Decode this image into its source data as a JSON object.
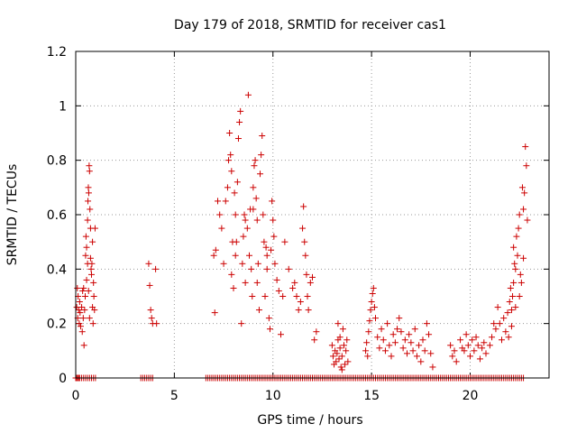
{
  "chart_data": {
    "type": "scatter",
    "title": "Day 179 of 2018, SRMTID for receiver cas1",
    "xlabel": "GPS time / hours",
    "ylabel": "SRMTID / TECUs",
    "xlim": [
      0,
      24
    ],
    "ylim": [
      0,
      1.2
    ],
    "xticks": [
      0,
      5,
      10,
      15,
      20
    ],
    "yticks": [
      0,
      0.2,
      0.4,
      0.6,
      0.8,
      1,
      1.2
    ],
    "xtick_labels": [
      "0",
      "5",
      "10",
      "15",
      "20"
    ],
    "ytick_labels": [
      "0",
      "0.2",
      "0.4",
      "0.6",
      "0.8",
      "1",
      "1.2"
    ],
    "grid": true,
    "marker": "+",
    "color": "#cc0000",
    "series": [
      {
        "name": "SRMTID",
        "points": [
          [
            0.05,
            0.26
          ],
          [
            0.08,
            0.33
          ],
          [
            0.1,
            0.22
          ],
          [
            0.12,
            0.3
          ],
          [
            0.15,
            0.25
          ],
          [
            0.18,
            0.2
          ],
          [
            0.2,
            0.28
          ],
          [
            0.22,
            0.24
          ],
          [
            0.25,
            0.19
          ],
          [
            0.3,
            0.26
          ],
          [
            0.33,
            0.17
          ],
          [
            0.35,
            0.32
          ],
          [
            0.38,
            0.22
          ],
          [
            0.4,
            0.33
          ],
          [
            0.42,
            0.12
          ],
          [
            0.45,
            0.25
          ],
          [
            0.48,
            0.3
          ],
          [
            0.5,
            0.45
          ],
          [
            0.52,
            0.52
          ],
          [
            0.55,
            0.48
          ],
          [
            0.6,
            0.58
          ],
          [
            0.62,
            0.65
          ],
          [
            0.64,
            0.7
          ],
          [
            0.66,
            0.68
          ],
          [
            0.68,
            0.78
          ],
          [
            0.7,
            0.76
          ],
          [
            0.72,
            0.62
          ],
          [
            0.75,
            0.55
          ],
          [
            0.78,
            0.4
          ],
          [
            0.8,
            0.38
          ],
          [
            0.82,
            0.42
          ],
          [
            0.85,
            0.5
          ],
          [
            0.9,
            0.35
          ],
          [
            0.92,
            0.3
          ],
          [
            0.95,
            0.25
          ],
          [
            0.98,
            0.55
          ],
          [
            0.55,
            0.36
          ],
          [
            0.6,
            0.42
          ],
          [
            0.65,
            0.32
          ],
          [
            0.7,
            0.22
          ],
          [
            0.75,
            0.44
          ],
          [
            0.85,
            0.26
          ],
          [
            0.88,
            0.2
          ],
          [
            3.7,
            0.42
          ],
          [
            3.75,
            0.34
          ],
          [
            3.8,
            0.25
          ],
          [
            3.85,
            0.22
          ],
          [
            3.9,
            0.2
          ],
          [
            4.05,
            0.4
          ],
          [
            4.1,
            0.2
          ],
          [
            7.0,
            0.45
          ],
          [
            7.05,
            0.24
          ],
          [
            7.1,
            0.47
          ],
          [
            7.2,
            0.65
          ],
          [
            7.3,
            0.6
          ],
          [
            7.4,
            0.55
          ],
          [
            7.5,
            0.42
          ],
          [
            7.6,
            0.65
          ],
          [
            7.7,
            0.7
          ],
          [
            7.75,
            0.8
          ],
          [
            7.8,
            0.9
          ],
          [
            7.85,
            0.82
          ],
          [
            7.9,
            0.76
          ],
          [
            7.95,
            0.5
          ],
          [
            8.0,
            0.33
          ],
          [
            8.05,
            0.68
          ],
          [
            8.1,
            0.6
          ],
          [
            8.2,
            0.72
          ],
          [
            8.25,
            0.88
          ],
          [
            8.3,
            0.94
          ],
          [
            8.35,
            0.98
          ],
          [
            8.4,
            0.2
          ],
          [
            8.45,
            0.42
          ],
          [
            8.5,
            0.52
          ],
          [
            8.55,
            0.6
          ],
          [
            8.6,
            0.35
          ],
          [
            8.7,
            0.55
          ],
          [
            8.75,
            1.04
          ],
          [
            8.8,
            0.45
          ],
          [
            8.85,
            0.62
          ],
          [
            8.9,
            0.4
          ],
          [
            8.95,
            0.3
          ],
          [
            9.0,
            0.7
          ],
          [
            9.05,
            0.78
          ],
          [
            9.1,
            0.8
          ],
          [
            9.15,
            0.66
          ],
          [
            9.2,
            0.58
          ],
          [
            9.25,
            0.42
          ],
          [
            9.3,
            0.25
          ],
          [
            9.35,
            0.75
          ],
          [
            9.4,
            0.82
          ],
          [
            9.45,
            0.89
          ],
          [
            9.5,
            0.6
          ],
          [
            9.55,
            0.5
          ],
          [
            9.6,
            0.3
          ],
          [
            9.65,
            0.48
          ],
          [
            9.7,
            0.4
          ],
          [
            9.8,
            0.22
          ],
          [
            9.85,
            0.18
          ],
          [
            9.9,
            0.47
          ],
          [
            9.95,
            0.65
          ],
          [
            10.0,
            0.58
          ],
          [
            10.05,
            0.52
          ],
          [
            10.1,
            0.42
          ],
          [
            10.2,
            0.36
          ],
          [
            10.3,
            0.32
          ],
          [
            10.4,
            0.16
          ],
          [
            10.5,
            0.3
          ],
          [
            10.6,
            0.5
          ],
          [
            10.8,
            0.4
          ],
          [
            11.0,
            0.33
          ],
          [
            11.1,
            0.35
          ],
          [
            11.2,
            0.3
          ],
          [
            11.3,
            0.25
          ],
          [
            11.4,
            0.28
          ],
          [
            11.5,
            0.55
          ],
          [
            11.55,
            0.63
          ],
          [
            11.6,
            0.5
          ],
          [
            11.65,
            0.45
          ],
          [
            11.7,
            0.38
          ],
          [
            11.75,
            0.3
          ],
          [
            11.8,
            0.25
          ],
          [
            11.9,
            0.35
          ],
          [
            12.0,
            0.37
          ],
          [
            12.1,
            0.14
          ],
          [
            12.2,
            0.17
          ],
          [
            7.9,
            0.38
          ],
          [
            8.1,
            0.45
          ],
          [
            8.15,
            0.5
          ],
          [
            8.6,
            0.58
          ],
          [
            9.0,
            0.62
          ],
          [
            9.2,
            0.35
          ],
          [
            9.7,
            0.45
          ],
          [
            13.0,
            0.12
          ],
          [
            13.05,
            0.08
          ],
          [
            13.1,
            0.05
          ],
          [
            13.15,
            0.1
          ],
          [
            13.2,
            0.06
          ],
          [
            13.25,
            0.09
          ],
          [
            13.3,
            0.14
          ],
          [
            13.35,
            0.07
          ],
          [
            13.4,
            0.11
          ],
          [
            13.45,
            0.04
          ],
          [
            13.5,
            0.08
          ],
          [
            13.55,
            0.18
          ],
          [
            13.6,
            0.12
          ],
          [
            13.65,
            0.05
          ],
          [
            13.7,
            0.1
          ],
          [
            13.75,
            0.14
          ],
          [
            13.8,
            0.06
          ],
          [
            13.3,
            0.2
          ],
          [
            13.4,
            0.15
          ],
          [
            13.5,
            0.03
          ],
          [
            14.7,
            0.1
          ],
          [
            14.75,
            0.13
          ],
          [
            14.8,
            0.08
          ],
          [
            14.85,
            0.17
          ],
          [
            14.9,
            0.21
          ],
          [
            14.95,
            0.25
          ],
          [
            15.0,
            0.28
          ],
          [
            15.05,
            0.31
          ],
          [
            15.1,
            0.33
          ],
          [
            15.15,
            0.26
          ],
          [
            15.2,
            0.22
          ],
          [
            15.3,
            0.15
          ],
          [
            15.4,
            0.11
          ],
          [
            15.5,
            0.18
          ],
          [
            15.6,
            0.14
          ],
          [
            15.7,
            0.1
          ],
          [
            15.8,
            0.2
          ],
          [
            15.9,
            0.12
          ],
          [
            16.0,
            0.08
          ],
          [
            16.1,
            0.16
          ],
          [
            16.2,
            0.13
          ],
          [
            16.3,
            0.18
          ],
          [
            16.4,
            0.22
          ],
          [
            16.5,
            0.17
          ],
          [
            16.6,
            0.11
          ],
          [
            16.7,
            0.14
          ],
          [
            16.8,
            0.09
          ],
          [
            16.9,
            0.16
          ],
          [
            17.0,
            0.13
          ],
          [
            17.1,
            0.1
          ],
          [
            17.2,
            0.18
          ],
          [
            17.3,
            0.08
          ],
          [
            17.4,
            0.12
          ],
          [
            17.5,
            0.06
          ],
          [
            17.6,
            0.14
          ],
          [
            17.7,
            0.1
          ],
          [
            17.8,
            0.2
          ],
          [
            17.9,
            0.16
          ],
          [
            18.0,
            0.09
          ],
          [
            18.1,
            0.04
          ],
          [
            19.0,
            0.12
          ],
          [
            19.1,
            0.08
          ],
          [
            19.2,
            0.1
          ],
          [
            19.3,
            0.06
          ],
          [
            19.5,
            0.14
          ],
          [
            19.6,
            0.11
          ],
          [
            19.7,
            0.1
          ],
          [
            19.8,
            0.16
          ],
          [
            19.9,
            0.12
          ],
          [
            20.0,
            0.08
          ],
          [
            20.1,
            0.14
          ],
          [
            20.2,
            0.1
          ],
          [
            20.3,
            0.15
          ],
          [
            20.4,
            0.12
          ],
          [
            20.5,
            0.07
          ],
          [
            20.6,
            0.11
          ],
          [
            20.7,
            0.13
          ],
          [
            20.8,
            0.09
          ],
          [
            21.0,
            0.12
          ],
          [
            21.1,
            0.15
          ],
          [
            21.2,
            0.2
          ],
          [
            21.3,
            0.18
          ],
          [
            21.4,
            0.26
          ],
          [
            21.5,
            0.2
          ],
          [
            21.6,
            0.14
          ],
          [
            21.7,
            0.22
          ],
          [
            21.8,
            0.17
          ],
          [
            21.9,
            0.24
          ],
          [
            22.0,
            0.28
          ],
          [
            22.05,
            0.33
          ],
          [
            22.1,
            0.25
          ],
          [
            22.15,
            0.3
          ],
          [
            22.2,
            0.35
          ],
          [
            22.25,
            0.42
          ],
          [
            22.3,
            0.4
          ],
          [
            22.35,
            0.52
          ],
          [
            22.4,
            0.45
          ],
          [
            22.45,
            0.55
          ],
          [
            22.5,
            0.6
          ],
          [
            22.55,
            0.38
          ],
          [
            22.6,
            0.35
          ],
          [
            22.65,
            0.7
          ],
          [
            22.7,
            0.62
          ],
          [
            22.75,
            0.68
          ],
          [
            22.8,
            0.85
          ],
          [
            22.85,
            0.78
          ],
          [
            22.9,
            0.58
          ],
          [
            21.95,
            0.15
          ],
          [
            22.1,
            0.19
          ],
          [
            22.3,
            0.26
          ],
          [
            22.5,
            0.3
          ],
          [
            22.7,
            0.44
          ],
          [
            22.2,
            0.48
          ]
        ],
        "zero_points": [
          0.0,
          0.05,
          0.1,
          0.15,
          0.2,
          0.3,
          0.4,
          0.5,
          0.6,
          0.7,
          0.8,
          0.9,
          1.0,
          3.3,
          3.4,
          3.5,
          3.6,
          3.7,
          3.8,
          3.9,
          6.6,
          6.7,
          6.8,
          6.9,
          7.0,
          7.1,
          7.2,
          7.3,
          7.4,
          7.5,
          7.6,
          7.7,
          7.8,
          7.9,
          8.0,
          8.1,
          8.2,
          8.3,
          8.4,
          8.5,
          8.6,
          8.7,
          8.8,
          8.9,
          9.0,
          9.1,
          9.2,
          9.3,
          9.4,
          9.5,
          9.6,
          9.7,
          9.8,
          9.9,
          10.0,
          10.1,
          10.2,
          10.3,
          10.4,
          10.5,
          10.6,
          10.7,
          10.8,
          10.9,
          11.0,
          11.1,
          11.2,
          11.3,
          11.4,
          11.5,
          11.6,
          11.7,
          11.8,
          11.9,
          12.0,
          12.1,
          12.2,
          12.3,
          12.4,
          12.5,
          12.6,
          12.7,
          12.8,
          12.9,
          13.0,
          13.1,
          13.2,
          13.3,
          13.4,
          13.5,
          13.6,
          13.7,
          13.8,
          13.9,
          14.0,
          14.1,
          14.2,
          14.3,
          14.4,
          14.5,
          14.6,
          14.7,
          14.8,
          14.9,
          15.0,
          15.1,
          15.2,
          15.3,
          15.4,
          15.5,
          15.6,
          15.7,
          15.8,
          15.9,
          16.0,
          16.1,
          16.2,
          16.3,
          16.4,
          16.5,
          16.6,
          16.7,
          16.8,
          16.9,
          17.0,
          17.1,
          17.2,
          17.3,
          17.4,
          17.5,
          17.6,
          17.7,
          17.8,
          17.9,
          18.0,
          18.1,
          18.2,
          18.3,
          18.4,
          18.5,
          18.6,
          18.7,
          18.8,
          18.9,
          19.0,
          19.1,
          19.2,
          19.3,
          19.4,
          19.5,
          19.6,
          19.7,
          19.8,
          19.9,
          20.0,
          20.1,
          20.2,
          20.3,
          20.4,
          20.5,
          20.6,
          20.7,
          20.8,
          20.9,
          21.0,
          21.1,
          21.2,
          21.3,
          21.4,
          21.5,
          21.6,
          21.7,
          21.8,
          21.9,
          22.0,
          22.1,
          22.2,
          22.3,
          22.4,
          22.5,
          22.6,
          22.7
        ]
      }
    ]
  }
}
